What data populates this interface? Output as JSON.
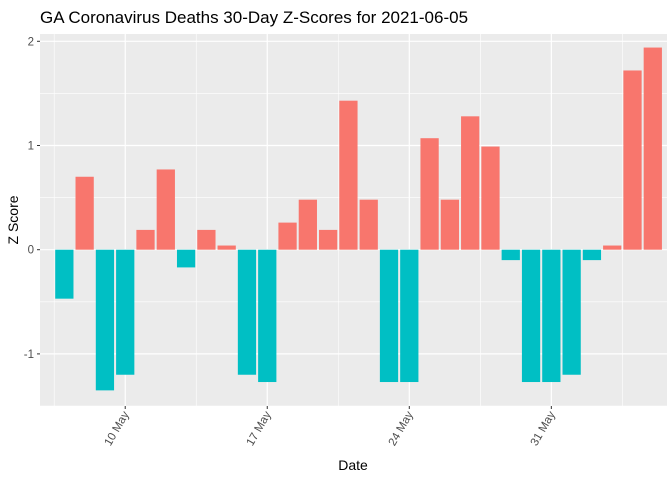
{
  "chart_data": {
    "type": "bar",
    "title": "GA Coronavirus Deaths 30-Day Z-Scores for 2021-06-05",
    "xlabel": "Date",
    "ylabel": "Z Score",
    "ylim": [
      -1.5,
      2.07
    ],
    "y_ticks": [
      -1,
      0,
      1,
      2
    ],
    "y_tick_labels": [
      "-1",
      "0",
      "1",
      "2"
    ],
    "x_ticks": [
      {
        "label": "10 May",
        "day": 10
      },
      {
        "label": "17 May",
        "day": 17
      },
      {
        "label": "24 May",
        "day": 24
      },
      {
        "label": "31 May",
        "day": 31
      }
    ],
    "x_range_days": [
      5.8,
      36.7
    ],
    "grid": true,
    "positive_color": "#F8766D",
    "negative_color": "#00BFC4",
    "panel_background": "#EBEBEB",
    "grid_color": "#FFFFFF",
    "days": [
      7,
      8,
      9,
      10,
      11,
      12,
      13,
      14,
      15,
      16,
      17,
      18,
      19,
      20,
      21,
      22,
      23,
      24,
      25,
      26,
      27,
      28,
      29,
      30,
      31,
      32,
      33,
      34,
      35,
      36
    ],
    "values": [
      -0.47,
      0.7,
      -1.35,
      -1.2,
      0.19,
      0.77,
      -0.17,
      0.19,
      0.04,
      -1.2,
      -1.27,
      0.26,
      0.48,
      0.19,
      1.43,
      0.48,
      -1.27,
      -1.27,
      1.07,
      0.48,
      1.28,
      0.99,
      -0.1,
      -1.27,
      -1.27,
      -1.2,
      -0.1,
      0.04,
      1.72,
      1.94
    ]
  }
}
